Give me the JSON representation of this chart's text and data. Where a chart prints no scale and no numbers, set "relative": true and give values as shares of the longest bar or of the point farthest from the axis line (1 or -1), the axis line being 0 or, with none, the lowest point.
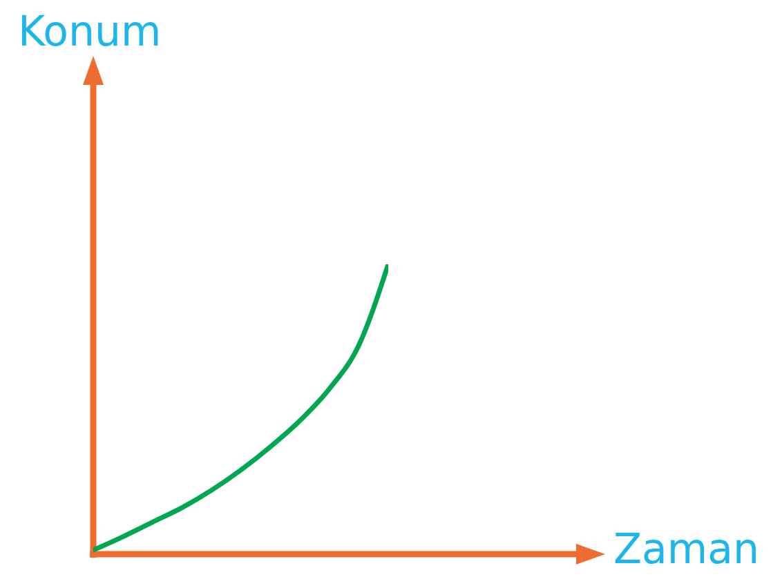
{
  "chart_data": {
    "type": "line",
    "annotations": [
      "Konum",
      "Zaman"
    ],
    "relative": true,
    "categories": [
      null,
      null,
      null,
      null,
      null,
      null,
      null,
      null,
      null,
      null,
      null
    ],
    "values": [
      0.014,
      0.06,
      0.11,
      0.16,
      0.22,
      0.29,
      0.37,
      0.46,
      0.57,
      0.72,
      1
    ],
    "color": "#00a651"
  }
}
